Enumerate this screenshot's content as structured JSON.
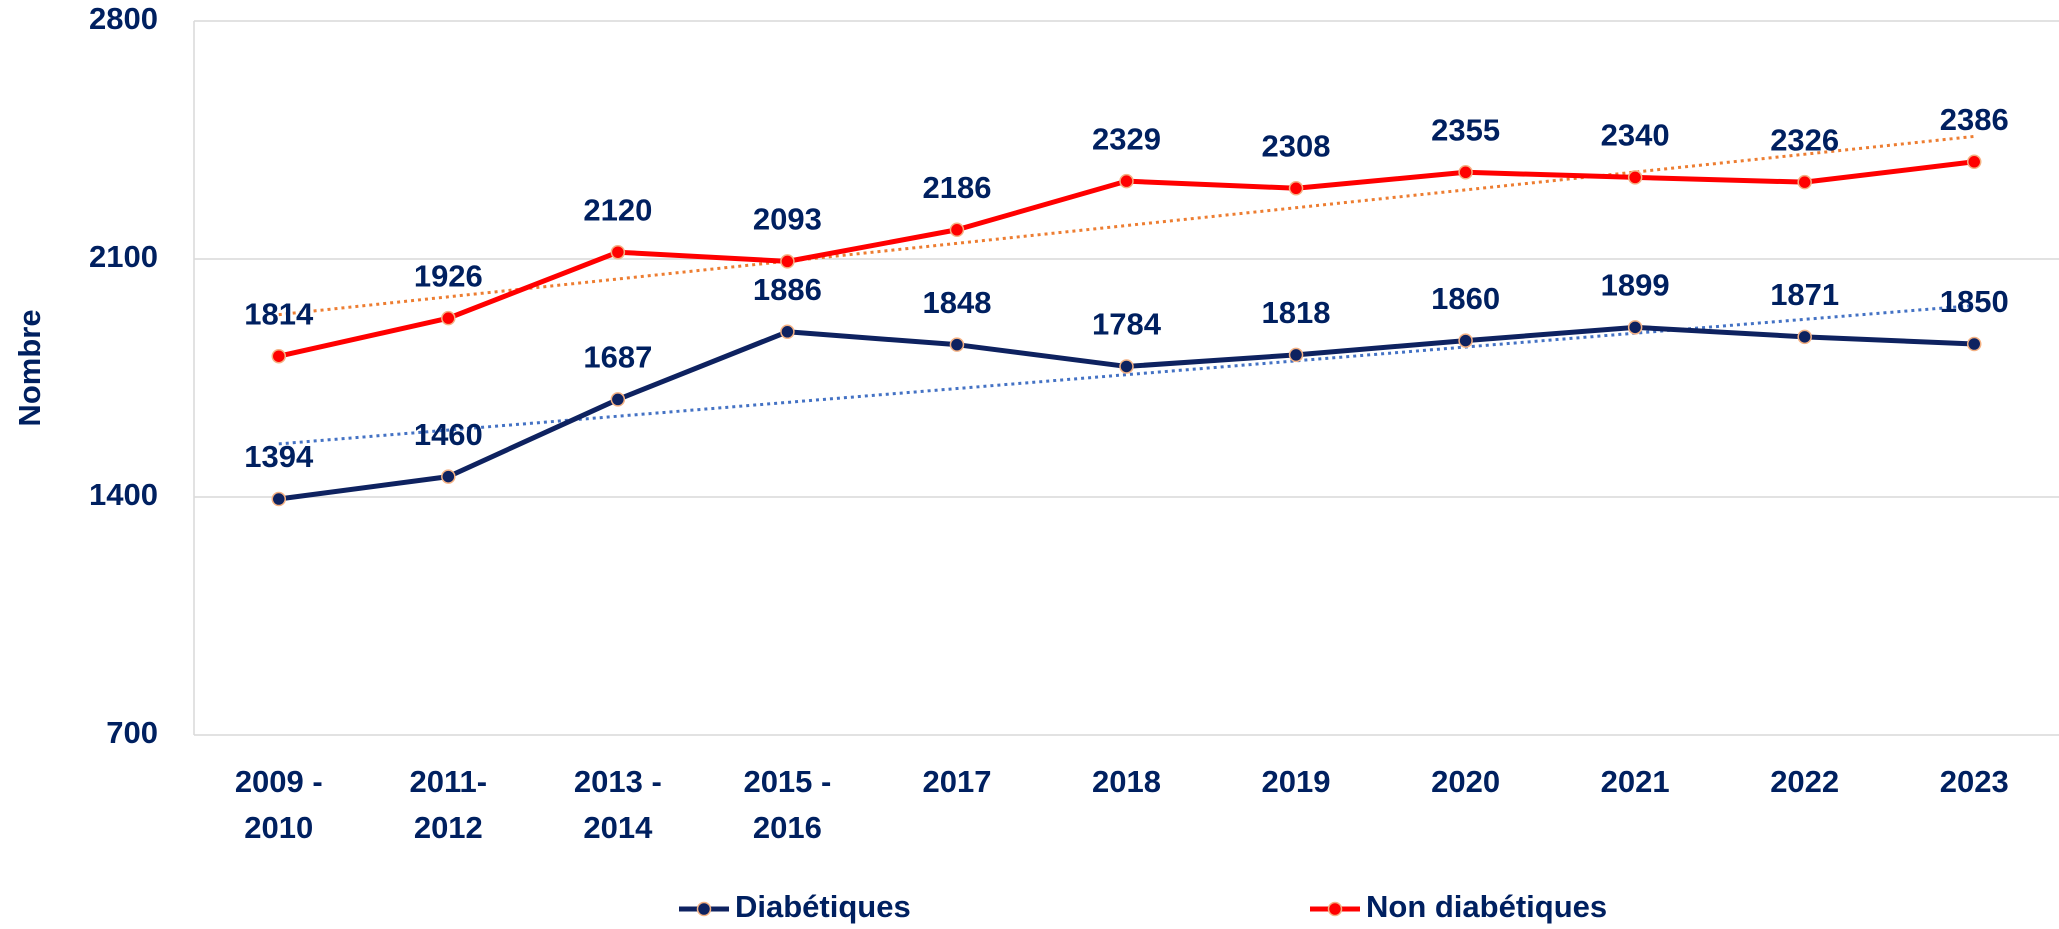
{
  "chart_data": {
    "type": "line",
    "y_label": "Nombre",
    "categories": [
      "2009 -\n2010",
      "2011-\n2012",
      "2013 -\n2014",
      "2015 -\n2016",
      "2017",
      "2018",
      "2019",
      "2020",
      "2021",
      "2022",
      "2023"
    ],
    "series": [
      {
        "name": "Diabétiques",
        "color": "#0e2260",
        "trendline_color": "#4472c4",
        "values": [
          1394,
          1460,
          1687,
          1886,
          1848,
          1784,
          1818,
          1860,
          1899,
          1871,
          1850
        ]
      },
      {
        "name": "Non diabétiques",
        "color": "#ff0000",
        "trendline_color": "#ed7d31",
        "values": [
          1814,
          1926,
          2120,
          2093,
          2186,
          2329,
          2308,
          2355,
          2340,
          2326,
          2386
        ]
      }
    ],
    "trendline": "linear",
    "ylim": [
      700,
      2800
    ],
    "yticks": [
      700,
      1400,
      2100,
      2800
    ],
    "grid": true,
    "legend": "bottom"
  }
}
